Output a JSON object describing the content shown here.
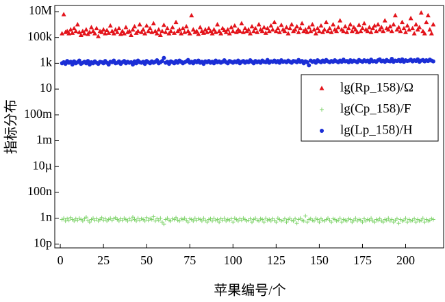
{
  "chart_data": {
    "type": "scatter",
    "x_label": "苹果编号/个",
    "y_label": "指标分布",
    "y_log": true,
    "legend": "upper right",
    "xlim": [
      -3.2,
      222
    ],
    "ylim": [
      5e-12,
      30000000.0
    ],
    "xticks": [
      0,
      25,
      50,
      75,
      100,
      125,
      150,
      175,
      200
    ],
    "yticks": [
      {
        "value": 1e-11,
        "label": "10p"
      },
      {
        "value": 1e-09,
        "label": "1n"
      },
      {
        "value": 1e-07,
        "label": "100n"
      },
      {
        "value": 1e-05,
        "label": "10µ"
      },
      {
        "value": 0.001,
        "label": "1m"
      },
      {
        "value": 0.1,
        "label": "100m"
      },
      {
        "value": 10,
        "label": "10"
      },
      {
        "value": 1000.0,
        "label": "1k"
      },
      {
        "value": 100000.0,
        "label": "100k"
      },
      {
        "value": 10000000.0,
        "label": "10M"
      }
    ],
    "x": [
      1,
      2,
      3,
      4,
      5,
      6,
      7,
      8,
      9,
      10,
      11,
      12,
      13,
      14,
      15,
      16,
      17,
      18,
      19,
      20,
      21,
      22,
      23,
      24,
      25,
      26,
      27,
      28,
      29,
      30,
      31,
      32,
      33,
      34,
      35,
      36,
      37,
      38,
      39,
      40,
      41,
      42,
      43,
      44,
      45,
      46,
      47,
      48,
      49,
      50,
      51,
      52,
      53,
      54,
      55,
      56,
      57,
      58,
      59,
      60,
      61,
      62,
      63,
      64,
      65,
      66,
      67,
      68,
      69,
      70,
      71,
      72,
      73,
      74,
      75,
      76,
      77,
      78,
      79,
      80,
      81,
      82,
      83,
      84,
      85,
      86,
      87,
      88,
      89,
      90,
      91,
      92,
      93,
      94,
      95,
      96,
      97,
      98,
      99,
      100,
      101,
      102,
      103,
      104,
      105,
      106,
      107,
      108,
      109,
      110,
      111,
      112,
      113,
      114,
      115,
      116,
      117,
      118,
      119,
      120,
      121,
      122,
      123,
      124,
      125,
      126,
      127,
      128,
      129,
      130,
      131,
      132,
      133,
      134,
      135,
      136,
      137,
      138,
      139,
      140,
      141,
      142,
      143,
      144,
      145,
      146,
      147,
      148,
      149,
      150,
      151,
      152,
      153,
      154,
      155,
      156,
      157,
      158,
      159,
      160,
      161,
      162,
      163,
      164,
      165,
      166,
      167,
      168,
      169,
      170,
      171,
      172,
      173,
      174,
      175,
      176,
      177,
      178,
      179,
      180,
      181,
      182,
      183,
      184,
      185,
      186,
      187,
      188,
      189,
      190,
      191,
      192,
      193,
      194,
      195,
      196,
      197,
      198,
      199,
      200,
      201,
      202,
      203,
      204,
      205,
      206,
      207,
      208,
      209,
      210,
      211,
      212,
      213,
      214,
      215,
      216
    ],
    "series": [
      {
        "name": "lg(Rp_158)/Ω",
        "color": "#e3141b",
        "marker": "triangle",
        "values": [
          200000.0,
          6000000.0,
          250000.0,
          300000.0,
          200000.0,
          400000.0,
          220000.0,
          500000.0,
          300000.0,
          1000000.0,
          250000.0,
          150000.0,
          300000.0,
          200000.0,
          400000.0,
          180000.0,
          250000.0,
          600000.0,
          300000.0,
          200000.0,
          500000.0,
          120000.0,
          300000.0,
          250000.0,
          400000.0,
          200000.0,
          350000.0,
          220000.0,
          800000.0,
          300000.0,
          200000.0,
          400000.0,
          250000.0,
          500000.0,
          180000.0,
          300000.0,
          200000.0,
          600000.0,
          250000.0,
          300000.0,
          150000.0,
          400000.0,
          700000.0,
          220000.0,
          300000.0,
          1000000.0,
          250000.0,
          400000.0,
          200000.0,
          800000.0,
          300000.0,
          500000.0,
          250000.0,
          1200000.0,
          300000.0,
          200000.0,
          400000.0,
          150000.0,
          300000.0,
          900000.0,
          250000.0,
          500000.0,
          200000.0,
          300000.0,
          600000.0,
          220000.0,
          1500000.0,
          300000.0,
          400000.0,
          200000.0,
          500000.0,
          250000.0,
          700000.0,
          300000.0,
          200000.0,
          5000000.0,
          400000.0,
          250000.0,
          300000.0,
          180000.0,
          600000.0,
          300000.0,
          220000.0,
          400000.0,
          250000.0,
          500000.0,
          300000.0,
          200000.0,
          400000.0,
          250000.0,
          1000000.0,
          300000.0,
          200000.0,
          500000.0,
          350000.0,
          250000.0,
          400000.0,
          200000.0,
          600000.0,
          300000.0,
          800000.0,
          250000.0,
          400000.0,
          300000.0,
          1200000.0,
          250000.0,
          500000.0,
          300000.0,
          400000.0,
          200000.0,
          700000.0,
          300000.0,
          500000.0,
          250000.0,
          1000000.0,
          400000.0,
          300000.0,
          600000.0,
          220000.0,
          500000.0,
          300000.0,
          800000.0,
          400000.0,
          1500000.0,
          300000.0,
          500000.0,
          250000.0,
          900000.0,
          400000.0,
          300000.0,
          600000.0,
          200000.0,
          500000.0,
          1000000.0,
          300000.0,
          400000.0,
          700000.0,
          250000.0,
          500000.0,
          1200000.0,
          300000.0,
          400000.0,
          250000.0,
          600000.0,
          300000.0,
          1000000.0,
          400000.0,
          200000.0,
          500000.0,
          300000.0,
          800000.0,
          250000.0,
          400000.0,
          1500000.0,
          300000.0,
          500000.0,
          250000.0,
          1000000.0,
          400000.0,
          300000.0,
          600000.0,
          2000000.0,
          400000.0,
          300000.0,
          700000.0,
          250000.0,
          500000.0,
          1000000.0,
          300000.0,
          600000.0,
          400000.0,
          250000.0,
          900000.0,
          300000.0,
          500000.0,
          1200000.0,
          400000.0,
          300000.0,
          600000.0,
          250000.0,
          500000.0,
          800000.0,
          300000.0,
          1000000.0,
          400000.0,
          600000.0,
          300000.0,
          2000000.0,
          500000.0,
          400000.0,
          700000.0,
          300000.0,
          1000000.0,
          5000000.0,
          400000.0,
          600000.0,
          300000.0,
          1500000.0,
          500000.0,
          250000.0,
          800000.0,
          400000.0,
          3000000.0,
          500000.0,
          200000.0,
          1000000.0,
          400000.0,
          600000.0,
          8000000.0,
          300000.0,
          200000.0,
          1500000.0,
          5000000.0,
          400000.0,
          200000.0,
          1000000.0
        ]
      },
      {
        "name": "lg(Cp_158)/F",
        "color": "#7fd36b",
        "marker": "plus",
        "values": [
          8e-10,
          1e-09,
          6e-10,
          9e-10,
          7e-10,
          1.1e-09,
          8e-10,
          6e-10,
          9e-10,
          7e-10,
          1e-09,
          8e-10,
          6e-10,
          9e-10,
          1.2e-09,
          7e-10,
          5e-10,
          8e-10,
          1e-09,
          7e-10,
          9e-10,
          6e-10,
          8e-10,
          1.1e-09,
          7e-10,
          9e-10,
          6e-10,
          8e-10,
          1e-09,
          7e-10,
          9e-10,
          1.1e-09,
          8e-10,
          6e-10,
          9e-10,
          7e-10,
          1e-09,
          8e-10,
          6e-10,
          9e-10,
          7e-10,
          1.2e-09,
          8e-10,
          6e-10,
          1e-09,
          7e-10,
          9e-10,
          8e-10,
          6e-10,
          1.1e-09,
          7e-10,
          9e-10,
          8e-10,
          1.3e-09,
          6e-10,
          9e-10,
          7e-10,
          1e-09,
          5e-10,
          3.5e-10,
          8e-10,
          1e-09,
          7e-10,
          6e-10,
          9e-10,
          8e-10,
          1.1e-09,
          7e-10,
          6e-10,
          9e-10,
          8e-10,
          1e-09,
          7e-10,
          5e-10,
          9e-10,
          8e-10,
          6e-10,
          1e-09,
          7e-10,
          9e-10,
          8e-10,
          6e-10,
          1e-09,
          7e-10,
          5e-10,
          8e-10,
          9e-10,
          6e-10,
          1e-09,
          7e-10,
          8e-10,
          5e-10,
          9e-10,
          7e-10,
          1e-09,
          6e-10,
          8e-10,
          7e-10,
          9e-10,
          5e-10,
          1e-09,
          8e-10,
          6e-10,
          9e-10,
          7e-10,
          1e-09,
          8e-10,
          6e-10,
          7e-10,
          9e-10,
          5e-10,
          8e-10,
          1e-09,
          7e-10,
          6e-10,
          9e-10,
          8e-10,
          5e-10,
          1e-09,
          7e-10,
          8e-10,
          6e-10,
          9e-10,
          7e-10,
          5e-10,
          1e-09,
          8e-10,
          6e-10,
          7e-10,
          9e-10,
          5e-10,
          8e-10,
          1e-09,
          7e-10,
          6e-10,
          9e-10,
          4e-10,
          8e-10,
          1e-09,
          7e-10,
          6e-10,
          1.5e-09,
          5e-10,
          8e-10,
          9e-10,
          7e-10,
          6e-10,
          1e-09,
          8e-10,
          5e-10,
          9e-10,
          7e-10,
          6e-10,
          8e-10,
          1e-09,
          7e-10,
          5e-10,
          9e-10,
          8e-10,
          6e-10,
          7e-10,
          1e-09,
          5e-10,
          8e-10,
          7e-10,
          6e-10,
          9e-10,
          8e-10,
          5e-10,
          7e-10,
          1e-09,
          6e-10,
          8e-10,
          7e-10,
          5e-10,
          9e-10,
          6e-10,
          8e-10,
          7e-10,
          1e-09,
          6e-10,
          5e-10,
          8e-10,
          7e-10,
          9e-10,
          6e-10,
          5e-10,
          8e-10,
          7e-10,
          1e-09,
          6e-10,
          8e-10,
          5e-10,
          7e-10,
          9e-10,
          4e-10,
          8e-10,
          6e-10,
          7e-10,
          1e-09,
          5e-10,
          8e-10,
          6e-10,
          7e-10,
          9e-10,
          5e-10,
          8e-10,
          6e-10,
          7e-10,
          1e-09,
          5e-10,
          8e-10,
          6e-10,
          7e-10,
          9e-10,
          8e-10
        ]
      },
      {
        "name": "lg(Lp_158)/H",
        "color": "#1b2ed6",
        "marker": "circle",
        "values": [
          1000.0,
          1200.0,
          900.0,
          1500.0,
          1100.0,
          1300.0,
          800.0,
          1400.0,
          1000.0,
          1200.0,
          1600.0,
          900.0,
          1100.0,
          1300.0,
          1000.0,
          1500.0,
          800.0,
          1200.0,
          1000.0,
          1400.0,
          1100.0,
          900.0,
          1300.0,
          1200.0,
          1000.0,
          1500.0,
          1100.0,
          800.0,
          1300.0,
          1200.0,
          1600.0,
          1000.0,
          1100.0,
          1400.0,
          900.0,
          1200.0,
          1500.0,
          1000.0,
          1300.0,
          1100.0,
          1200.0,
          800.0,
          1400.0,
          1000.0,
          1600.0,
          1200.0,
          1100.0,
          1300.0,
          900.0,
          1500.0,
          1200.0,
          1000.0,
          1400.0,
          1100.0,
          1300.0,
          1700.0,
          1000.0,
          1200.0,
          1500.0,
          2600.0,
          1100.0,
          1300.0,
          900.0,
          1400.0,
          1200.0,
          1000.0,
          1500.0,
          1100.0,
          1600.0,
          1300.0,
          1000.0,
          1200.0,
          1400.0,
          1800.0,
          1100.0,
          1300.0,
          1000.0,
          1500.0,
          1200.0,
          1600.0,
          1100.0,
          1300.0,
          900.0,
          1400.0,
          1200.0,
          1500.0,
          1100.0,
          1300.0,
          1000.0,
          1600.0,
          1200.0,
          1400.0,
          1100.0,
          1300.0,
          1700.0,
          1200.0,
          1000.0,
          1500.0,
          1300.0,
          1100.0,
          1400.0,
          1200.0,
          1600.0,
          1000.0,
          1300.0,
          1500.0,
          1100.0,
          1400.0,
          1200.0,
          1700.0,
          1300.0,
          1000.0,
          1500.0,
          1200.0,
          1400.0,
          1100.0,
          1600.0,
          1300.0,
          1200.0,
          1800.0,
          1100.0,
          1400.0,
          1300.0,
          1600.0,
          1200.0,
          1500.0,
          1100.0,
          1700.0,
          1300.0,
          1400.0,
          1200.0,
          1600.0,
          1300.0,
          1100.0,
          1500.0,
          1400.0,
          1200.0,
          1800.0,
          1300.0,
          1500.0,
          1000.0,
          1400.0,
          1200.0,
          700.0,
          1600.0,
          1300.0,
          1500.0,
          1100.0,
          1700.0,
          1400.0,
          1200.0,
          1600.0,
          1300.0,
          1800.0,
          1400.0,
          1200.0,
          1500.0,
          1300.0,
          1700.0,
          1400.0,
          1200.0,
          1600.0,
          1300.0,
          1900.0,
          1400.0,
          1500.0,
          1200.0,
          1700.0,
          1300.0,
          1600.0,
          1400.0,
          1200.0,
          1800.0,
          1500.0,
          1300.0,
          1700.0,
          1400.0,
          1600.0,
          1200.0,
          1900.0,
          1400.0,
          1500.0,
          1300.0,
          1700.0,
          2000.0,
          1400.0,
          1600.0,
          1300.0,
          1800.0,
          1500.0,
          1400.0,
          2200.0,
          1300.0,
          1600.0,
          1500.0,
          1800.0,
          1400.0,
          2000.0,
          1300.0,
          1700.0,
          1500.0,
          1600.0,
          1900.0,
          1400.0,
          1700.0,
          1500.0,
          2000.0,
          1300.0,
          1600.0,
          1800.0,
          1400.0,
          1700.0,
          1500.0,
          1900.0,
          1600.0,
          1400.0
        ]
      }
    ]
  }
}
